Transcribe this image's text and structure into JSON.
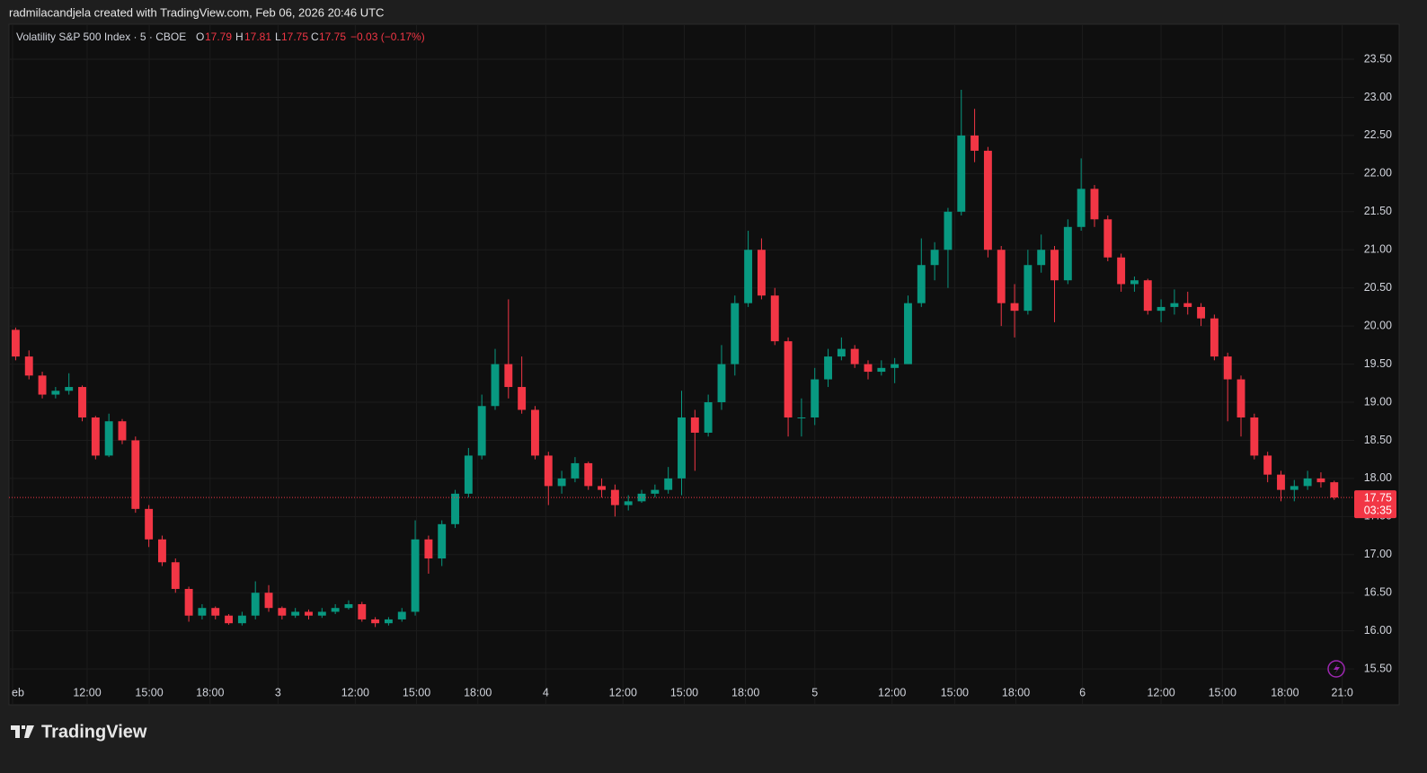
{
  "header": {
    "attribution": "radmilacandjela created with TradingView.com, Feb 06, 2026 20:46 UTC"
  },
  "footer": {
    "brand": "TradingView"
  },
  "chart_data": {
    "type": "candlestick",
    "title": "Volatility S&P 500 Index · 5 · CBOE",
    "legend": {
      "o_label": "O",
      "o": "17.79",
      "h_label": "H",
      "h": "17.81",
      "l_label": "L",
      "l": "17.75",
      "c_label": "C",
      "c": "17.75",
      "change": "−0.03 (−0.17%)"
    },
    "up_color": "#089981",
    "down_color": "#f23645",
    "open": [
      19.95,
      19.6,
      19.35,
      19.1,
      19.15,
      19.2,
      18.8,
      18.3,
      18.75,
      18.5,
      17.6,
      17.2,
      16.9,
      16.55,
      16.2,
      16.3,
      16.2,
      16.1,
      16.2,
      16.5,
      16.3,
      16.2,
      16.25,
      16.2,
      16.25,
      16.3,
      16.35,
      16.15,
      16.1,
      16.15,
      16.25,
      17.2,
      16.95,
      17.4,
      17.8,
      18.3,
      18.95,
      19.5,
      19.2,
      18.9,
      18.3,
      17.9,
      18.0,
      18.2,
      17.9,
      17.85,
      17.65,
      17.7,
      17.8,
      17.85,
      18.0,
      18.8,
      18.6,
      19.0,
      19.5,
      20.3,
      21.0,
      20.4,
      19.8,
      18.8,
      18.8,
      19.3,
      19.6,
      19.7,
      19.5,
      19.4,
      19.45,
      19.5,
      20.3,
      20.8,
      21.0,
      21.5,
      22.5,
      22.3,
      21.0,
      20.3,
      20.2,
      20.8,
      21.0,
      20.6,
      21.3,
      21.8,
      21.4,
      20.9,
      20.55,
      20.6,
      20.2,
      20.25,
      20.3,
      20.25,
      20.1,
      19.6,
      19.3,
      18.8,
      18.3,
      18.05,
      17.85,
      17.9,
      18.0,
      17.95
    ],
    "high": [
      19.98,
      19.68,
      19.4,
      19.2,
      19.38,
      19.22,
      18.82,
      18.85,
      18.78,
      18.55,
      17.65,
      17.25,
      16.95,
      16.58,
      16.35,
      16.32,
      16.22,
      16.25,
      16.65,
      16.6,
      16.32,
      16.3,
      16.28,
      16.3,
      16.35,
      16.4,
      16.38,
      16.18,
      16.18,
      16.3,
      17.45,
      17.25,
      17.45,
      17.85,
      18.4,
      19.1,
      19.7,
      20.35,
      19.6,
      18.95,
      18.35,
      18.1,
      18.28,
      18.22,
      18.0,
      17.92,
      17.78,
      17.85,
      17.92,
      18.15,
      19.15,
      18.9,
      19.1,
      19.75,
      20.4,
      21.25,
      21.15,
      20.5,
      19.85,
      19.05,
      19.45,
      19.7,
      19.85,
      19.75,
      19.55,
      19.55,
      19.58,
      20.4,
      21.15,
      21.1,
      21.55,
      23.1,
      22.85,
      22.35,
      21.05,
      20.55,
      21.0,
      21.2,
      21.05,
      21.4,
      22.2,
      21.85,
      21.45,
      20.95,
      20.65,
      20.62,
      20.35,
      20.48,
      20.45,
      20.3,
      20.15,
      19.65,
      19.35,
      18.85,
      18.35,
      18.1,
      17.98,
      18.1,
      18.08,
      17.97
    ],
    "low": [
      19.55,
      19.3,
      19.05,
      19.05,
      19.1,
      18.75,
      18.25,
      18.28,
      18.45,
      17.55,
      17.1,
      16.85,
      16.5,
      16.12,
      16.15,
      16.15,
      16.08,
      16.07,
      16.15,
      16.25,
      16.15,
      16.17,
      16.15,
      16.17,
      16.22,
      16.28,
      16.12,
      16.05,
      16.07,
      16.12,
      16.2,
      16.75,
      16.85,
      17.35,
      17.75,
      18.25,
      18.9,
      19.05,
      18.85,
      18.25,
      17.65,
      17.8,
      17.95,
      17.85,
      17.75,
      17.5,
      17.58,
      17.68,
      17.75,
      17.8,
      17.78,
      18.1,
      18.55,
      18.9,
      19.35,
      20.25,
      20.35,
      19.75,
      18.55,
      18.55,
      18.7,
      19.2,
      19.55,
      19.45,
      19.3,
      19.35,
      19.25,
      19.5,
      20.25,
      20.6,
      20.5,
      21.45,
      22.15,
      20.9,
      20.0,
      19.85,
      20.15,
      20.7,
      20.05,
      20.55,
      21.25,
      21.3,
      20.85,
      20.45,
      20.45,
      20.15,
      20.05,
      20.15,
      20.15,
      20.0,
      19.55,
      18.75,
      18.55,
      18.25,
      17.95,
      17.7,
      17.7,
      17.85,
      17.88,
      17.72
    ],
    "close": [
      19.6,
      19.35,
      19.1,
      19.15,
      19.2,
      18.8,
      18.3,
      18.75,
      18.5,
      17.6,
      17.2,
      16.9,
      16.55,
      16.2,
      16.3,
      16.2,
      16.1,
      16.2,
      16.5,
      16.3,
      16.2,
      16.25,
      16.2,
      16.25,
      16.3,
      16.35,
      16.15,
      16.1,
      16.15,
      16.25,
      17.2,
      16.95,
      17.4,
      17.8,
      18.3,
      18.95,
      19.5,
      19.2,
      18.9,
      18.3,
      17.9,
      18.0,
      18.2,
      17.9,
      17.85,
      17.65,
      17.7,
      17.8,
      17.85,
      18.0,
      18.8,
      18.6,
      19.0,
      19.5,
      20.3,
      21.0,
      20.4,
      19.8,
      18.8,
      18.8,
      19.3,
      19.6,
      19.7,
      19.5,
      19.4,
      19.45,
      19.5,
      20.3,
      20.8,
      21.0,
      21.5,
      22.5,
      22.3,
      21.0,
      20.3,
      20.2,
      20.8,
      21.0,
      20.6,
      21.3,
      21.8,
      21.4,
      20.9,
      20.55,
      20.6,
      20.2,
      20.25,
      20.3,
      20.25,
      20.1,
      19.6,
      19.3,
      18.8,
      18.3,
      18.05,
      17.85,
      17.9,
      18.0,
      17.95,
      17.75
    ],
    "xlim": [
      -0.5,
      100.5
    ],
    "xticks": [
      {
        "value": -0.23,
        "label": "eb"
      },
      {
        "value": 5.37,
        "label": "12:00"
      },
      {
        "value": 10.03,
        "label": "15:00"
      },
      {
        "value": 14.6,
        "label": "18:00"
      },
      {
        "value": 19.7,
        "label": "3"
      },
      {
        "value": 25.5,
        "label": "12:00"
      },
      {
        "value": 30.1,
        "label": "15:00"
      },
      {
        "value": 34.7,
        "label": "18:00"
      },
      {
        "value": 39.8,
        "label": "4"
      },
      {
        "value": 45.6,
        "label": "12:00"
      },
      {
        "value": 50.2,
        "label": "15:00"
      },
      {
        "value": 54.8,
        "label": "18:00"
      },
      {
        "value": 60.0,
        "label": "5"
      },
      {
        "value": 65.8,
        "label": "12:00"
      },
      {
        "value": 70.5,
        "label": "15:00"
      },
      {
        "value": 75.1,
        "label": "18:00"
      },
      {
        "value": 80.1,
        "label": "6"
      },
      {
        "value": 86.0,
        "label": "12:00"
      },
      {
        "value": 90.6,
        "label": "15:00"
      },
      {
        "value": 95.3,
        "label": "18:00"
      },
      {
        "value": 99.6,
        "label": "21:0"
      }
    ],
    "ylim": [
      15.03,
      23.96
    ],
    "yticks": [
      {
        "value": 15.5,
        "label": "15.50"
      },
      {
        "value": 16,
        "label": "16.00"
      },
      {
        "value": 16.5,
        "label": "16.50"
      },
      {
        "value": 17,
        "label": "17.00"
      },
      {
        "value": 17.5,
        "label": "17.50"
      },
      {
        "value": 18,
        "label": "18.00"
      },
      {
        "value": 18.5,
        "label": "18.50"
      },
      {
        "value": 19,
        "label": "19.00"
      },
      {
        "value": 19.5,
        "label": "19.50"
      },
      {
        "value": 20,
        "label": "20.00"
      },
      {
        "value": 20.5,
        "label": "20.50"
      },
      {
        "value": 21,
        "label": "21.00"
      },
      {
        "value": 21.5,
        "label": "21.50"
      },
      {
        "value": 22,
        "label": "22.00"
      },
      {
        "value": 22.5,
        "label": "22.50"
      },
      {
        "value": 23,
        "label": "23.00"
      },
      {
        "value": 23.5,
        "label": "23.50"
      }
    ],
    "grid": true,
    "last_price": 17.75,
    "countdown": "03:35"
  }
}
